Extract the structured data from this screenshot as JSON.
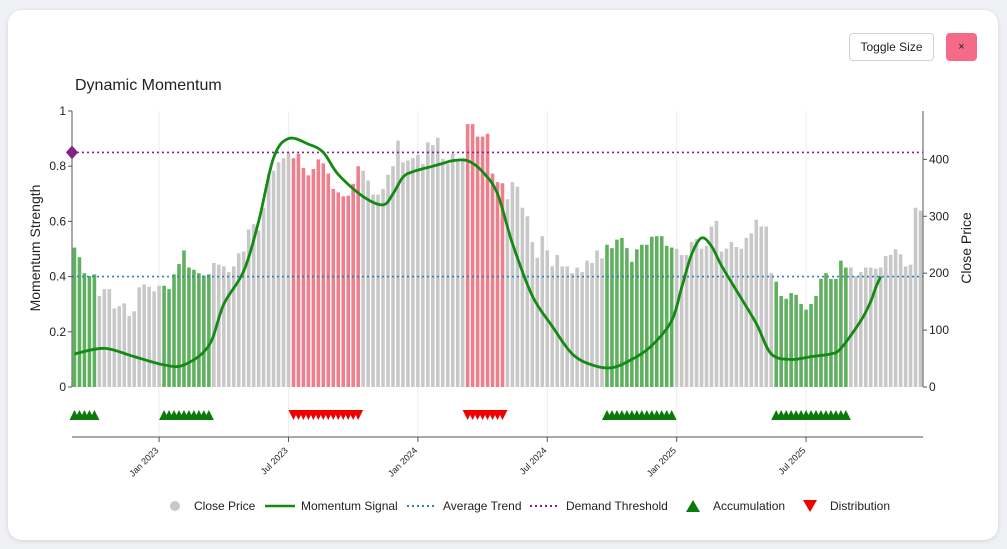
{
  "header": {
    "toggle_label": "Toggle Size",
    "close_label": "×"
  },
  "chart_data": {
    "type": "bar+line",
    "title": "Dynamic Momentum",
    "ylabel_left": "Momentum Strength",
    "ylabel_right": "Close Price",
    "ylim_left": [
      0,
      1
    ],
    "ylim_right": [
      0,
      485
    ],
    "left_ticks": [
      "0",
      "0.2",
      "0.4",
      "0.6",
      "0.8",
      "1"
    ],
    "right_ticks": [
      "0",
      "100",
      "200",
      "300",
      "400"
    ],
    "x_ticks": [
      "Jan 2023",
      "Jul 2023",
      "Jan 2024",
      "Jul 2024",
      "Jan 2025",
      "Jul 2025"
    ],
    "grid": true,
    "legend_position": "bottom",
    "colors": {
      "neutral": "#c8c8c8",
      "accumulation": "#5fb05f",
      "distribution": "#ee7f8d",
      "momentum": "#138a13",
      "average": "#2f7fb8",
      "demand": "#8b1b8b",
      "acc_marker": "#0a7a0a",
      "dist_marker": "#ee0000"
    },
    "legend": [
      {
        "key": "close",
        "label": "Close Price"
      },
      {
        "key": "momentum",
        "label": "Momentum Signal"
      },
      {
        "key": "average",
        "label": "Average Trend"
      },
      {
        "key": "demand",
        "label": "Demand Threshold"
      },
      {
        "key": "acc",
        "label": "Accumulation"
      },
      {
        "key": "dist",
        "label": "Distribution"
      }
    ],
    "average_trend": 0.4,
    "demand_threshold": 0.85,
    "close_prices": [
      245,
      228,
      200,
      195,
      198,
      160,
      172,
      172,
      138,
      142,
      147,
      125,
      133,
      175,
      180,
      176,
      168,
      178,
      178,
      172,
      198,
      216,
      240,
      210,
      206,
      200,
      196,
      198,
      218,
      215,
      212,
      202,
      212,
      235,
      238,
      277,
      286,
      275,
      315,
      375,
      380,
      395,
      402,
      412,
      402,
      410,
      385,
      372,
      383,
      400,
      393,
      375,
      348,
      342,
      335,
      336,
      357,
      388,
      380,
      363,
      338,
      338,
      348,
      373,
      388,
      433,
      395,
      398,
      402,
      408,
      392,
      430,
      425,
      438,
      401,
      392,
      410,
      398,
      402,
      462,
      462,
      440,
      440,
      445,
      375,
      360,
      358,
      330,
      360,
      352,
      315,
      300,
      255,
      227,
      265,
      240,
      212,
      232,
      212,
      212,
      200,
      210,
      202,
      222,
      218,
      240,
      226,
      250,
      244,
      259,
      262,
      244,
      220,
      242,
      250,
      250,
      264,
      265,
      265,
      248,
      245,
      243,
      232,
      232,
      255,
      260,
      243,
      248,
      282,
      292,
      238,
      243,
      255,
      246,
      243,
      262,
      270,
      294,
      282,
      282,
      200,
      185,
      160,
      155,
      165,
      162,
      146,
      136,
      146,
      160,
      190,
      200,
      190,
      190,
      222,
      210,
      210,
      195,
      202,
      210,
      210,
      208,
      210,
      230,
      232,
      242,
      233,
      212,
      215,
      315,
      310
    ]
  }
}
